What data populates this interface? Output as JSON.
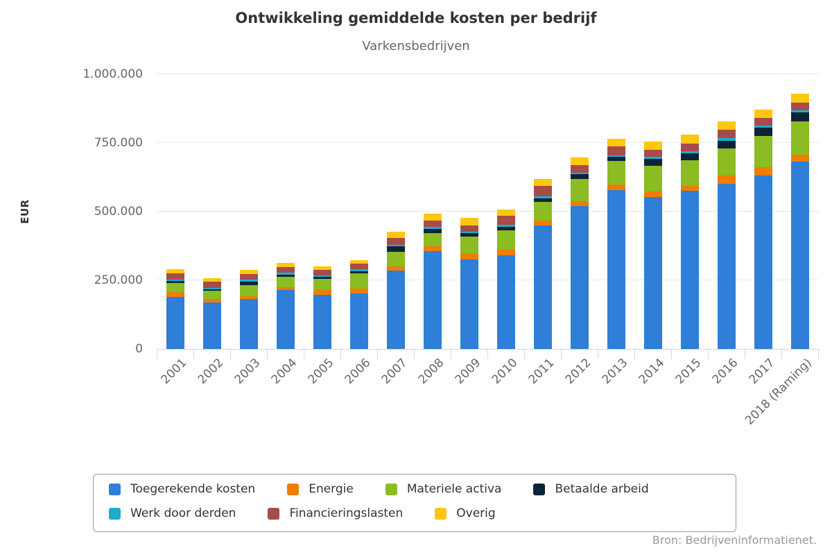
{
  "chart_data": {
    "type": "bar",
    "stacked": true,
    "title": "Ontwikkeling gemiddelde kosten per bedrijf",
    "subtitle": "Varkensbedrijven",
    "ylabel": "EUR",
    "source": "Bron: Bedrijveninformatienet.",
    "ylim": [
      0,
      1000000
    ],
    "grid": true,
    "legend_position": "bottom",
    "yticks": [
      {
        "value": 0,
        "label": "0"
      },
      {
        "value": 250000,
        "label": "250.000"
      },
      {
        "value": 500000,
        "label": "500.000"
      },
      {
        "value": 750000,
        "label": "750.000"
      },
      {
        "value": 1000000,
        "label": "1.000.000"
      }
    ],
    "categories": [
      "2001",
      "2002",
      "2003",
      "2004",
      "2005",
      "2006",
      "2007",
      "2008",
      "2009",
      "2010",
      "2011",
      "2012",
      "2013",
      "2014",
      "2015",
      "2016",
      "2017",
      "2018 (Raming)"
    ],
    "series": [
      {
        "name": "Toegerekende kosten",
        "color": "#2f7ed8",
        "values": [
          189000,
          168000,
          183000,
          214000,
          197000,
          203000,
          286000,
          355000,
          326000,
          342000,
          450000,
          519000,
          579000,
          553000,
          575000,
          602000,
          632000,
          682000
        ]
      },
      {
        "name": "Energie",
        "color": "#f07d00",
        "values": [
          17000,
          14500,
          10000,
          10000,
          17000,
          17000,
          15000,
          19500,
          23500,
          19500,
          18500,
          19500,
          18500,
          19500,
          18500,
          29500,
          29500,
          25500
        ]
      },
      {
        "name": "Materiele activa",
        "color": "#8bbc21",
        "values": [
          35000,
          29500,
          40000,
          38000,
          40000,
          55000,
          53000,
          48000,
          59000,
          70000,
          66000,
          80000,
          86000,
          94500,
          93000,
          99000,
          114000,
          120500
        ]
      },
      {
        "name": "Betaalde arbeid",
        "color": "#0d233a",
        "values": [
          7500,
          5000,
          12500,
          8500,
          8500,
          8500,
          20000,
          15000,
          12500,
          12000,
          14500,
          17000,
          17000,
          25500,
          25500,
          28000,
          29500,
          34000
        ]
      },
      {
        "name": "Werk door derden",
        "color": "#1aadce",
        "values": [
          5000,
          6000,
          7000,
          7000,
          5000,
          7000,
          5000,
          7000,
          6000,
          8500,
          7000,
          7000,
          4500,
          7000,
          8500,
          8500,
          7000,
          6000
        ]
      },
      {
        "name": "Financieringslasten",
        "color": "#a74b4b",
        "values": [
          23000,
          21000,
          21000,
          21000,
          20000,
          19500,
          25000,
          23000,
          23500,
          32000,
          38000,
          27000,
          32000,
          25500,
          27000,
          31000,
          28500,
          28000
        ]
      },
      {
        "name": "Overig",
        "color": "#fdc70d",
        "values": [
          13000,
          14500,
          14500,
          14500,
          13500,
          14500,
          23000,
          25500,
          27000,
          23500,
          25500,
          27000,
          29500,
          31000,
          32000,
          29500,
          32000,
          33000
        ]
      }
    ],
    "axis_colors": {
      "axis_line": "#ccd6eb",
      "gridline": "#e6e6e6",
      "tick_label": "#666666",
      "title_text": "#333333"
    }
  }
}
